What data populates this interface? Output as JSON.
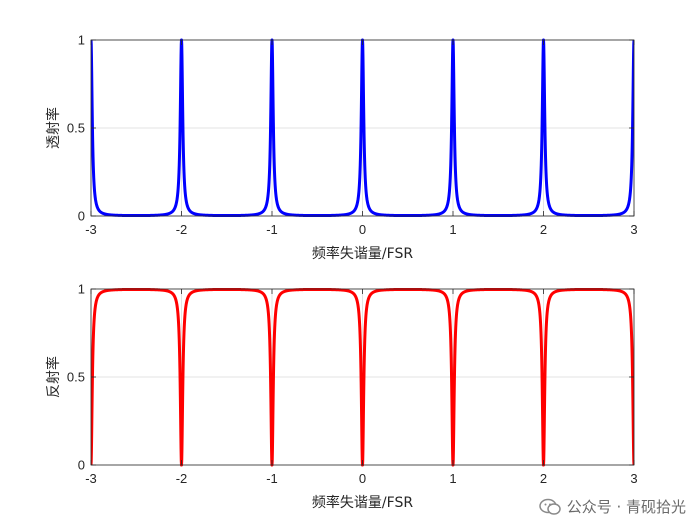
{
  "chart_data": [
    {
      "type": "line",
      "title": "",
      "xlabel": "频率失谐量/FSR",
      "ylabel": "透射率",
      "xlim": [
        -3,
        3
      ],
      "ylim": [
        0,
        1
      ],
      "xticks": [
        "-3",
        "-2",
        "-1",
        "0",
        "1",
        "2",
        "3"
      ],
      "yticks": [
        "0",
        "0.5",
        "1"
      ],
      "grid": true,
      "legend": "none",
      "series": [
        {
          "color": "#0000ff",
          "shape": "Airy transmission peaks, T = 1/(1 + F·sin²(πx))",
          "finesse_coefficient_F": 400,
          "peaks_x": [
            -3,
            -2,
            -1,
            0,
            1,
            2,
            3
          ],
          "peak_value": 1,
          "min_value": 0.0025
        }
      ]
    },
    {
      "type": "line",
      "title": "",
      "xlabel": "频率失谐量/FSR",
      "ylabel": "反射率",
      "xlim": [
        -3,
        3
      ],
      "ylim": [
        0,
        1
      ],
      "xticks": [
        "-3",
        "-2",
        "-1",
        "0",
        "1",
        "2",
        "3"
      ],
      "yticks": [
        "0",
        "0.5",
        "1"
      ],
      "grid": true,
      "legend": "none",
      "series": [
        {
          "color": "#ff0000",
          "shape": "Airy reflection dips, R = 1 - T",
          "finesse_coefficient_F": 400,
          "dips_x": [
            -3,
            -2,
            -1,
            0,
            1,
            2,
            3
          ],
          "dip_value": 0,
          "max_value": 0.9975
        }
      ]
    }
  ],
  "watermark": {
    "text": "公众号 · 青砚拾光",
    "icon": "wechat-icon"
  }
}
